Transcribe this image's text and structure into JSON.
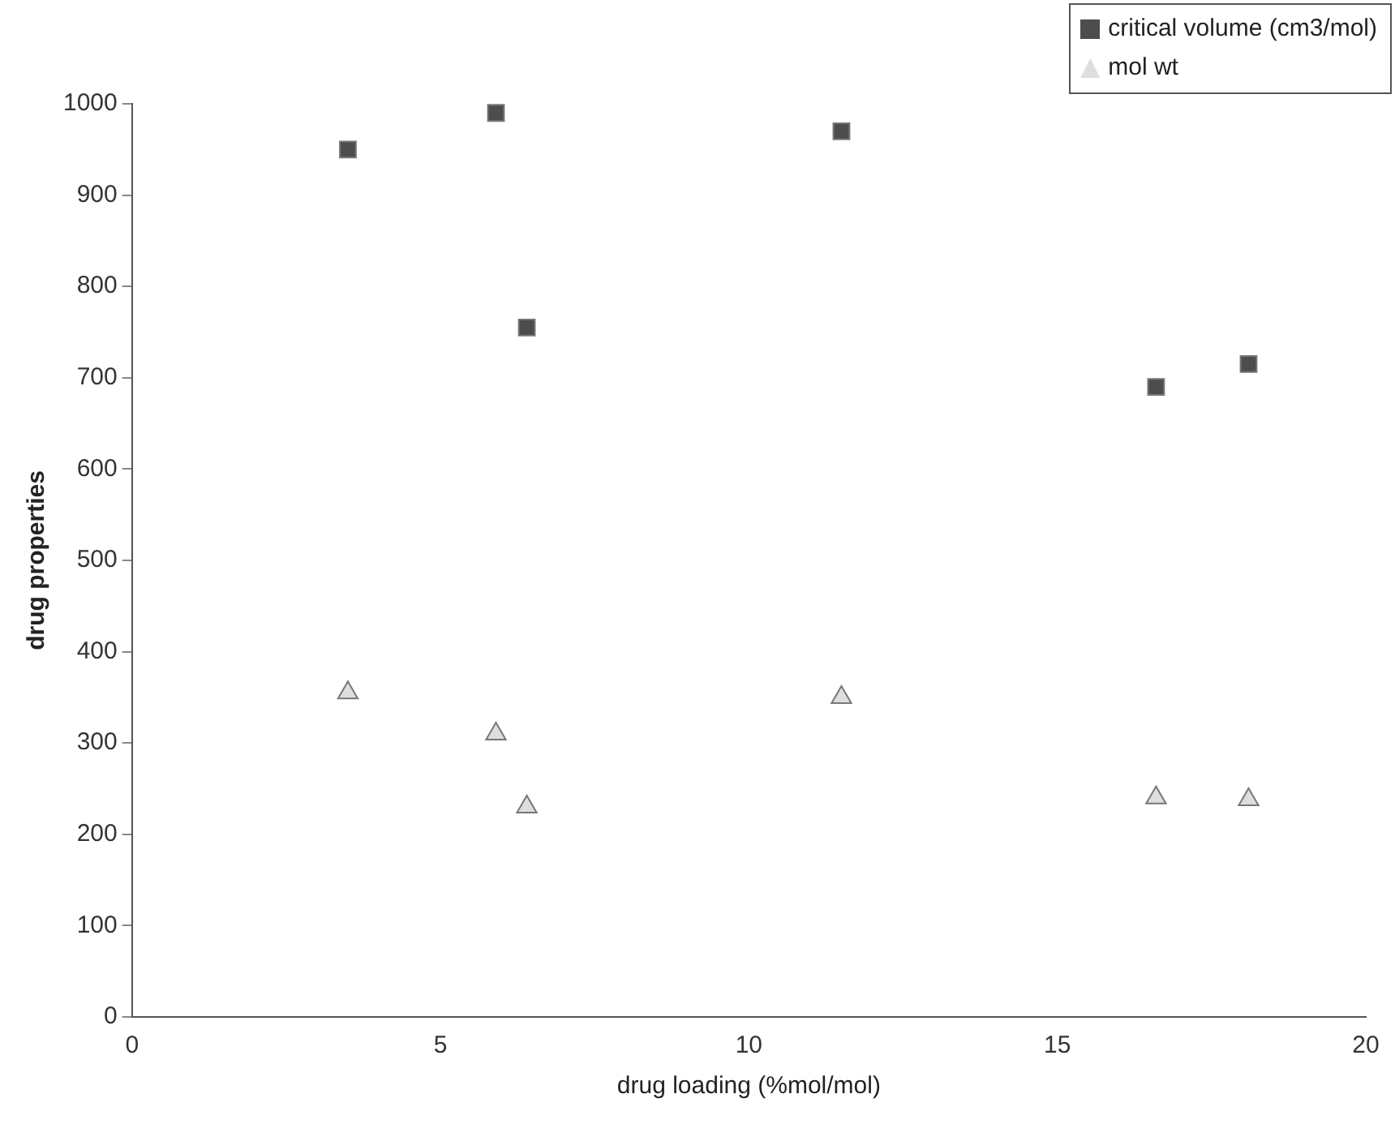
{
  "chart_data": {
    "type": "scatter",
    "xlabel": "drug loading (%mol/mol)",
    "ylabel": "drug properties",
    "xlim": [
      0,
      20
    ],
    "xticks": [
      0,
      5,
      10,
      15,
      20
    ],
    "ylim": [
      0,
      1000
    ],
    "yticks": [
      0,
      100,
      200,
      300,
      400,
      500,
      600,
      700,
      800,
      900,
      1000
    ],
    "grid": false,
    "legend": "top right",
    "series": [
      {
        "name": "critical volume (cm3/mol)",
        "color": "#4d4d4d",
        "marker": "square",
        "x": [
          3.5,
          5.9,
          6.4,
          11.5,
          16.6,
          18.1
        ],
        "values": [
          950,
          990,
          755,
          970,
          690,
          715
        ]
      },
      {
        "name": "mol wt",
        "color": "#dedede",
        "marker": "triangle",
        "x": [
          3.5,
          5.9,
          6.4,
          11.5,
          16.6,
          18.1
        ],
        "values": [
          355,
          310,
          230,
          350,
          240,
          238
        ]
      }
    ]
  }
}
